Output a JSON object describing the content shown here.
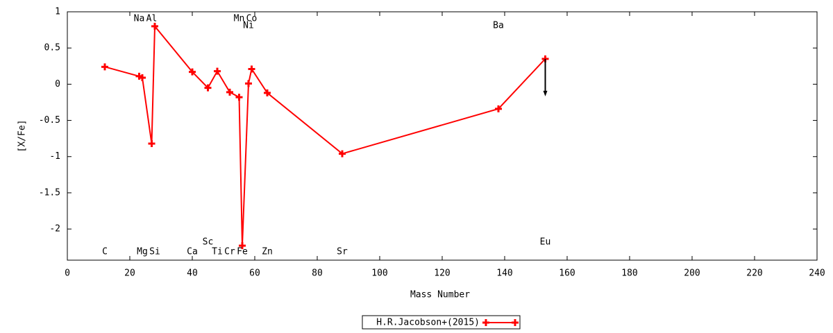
{
  "chart_data": {
    "type": "line",
    "x_label": "Mass Number",
    "y_label": "[X/Fe]",
    "xlim": [
      0,
      240
    ],
    "xticks": [
      0,
      20,
      40,
      60,
      80,
      100,
      120,
      140,
      160,
      180,
      200,
      220,
      240
    ],
    "ylim": [
      -2.43,
      1
    ],
    "yticks": [
      1,
      0.5,
      0,
      -0.5,
      -1,
      -1.5,
      -2
    ],
    "grid": false,
    "legend": "bottom",
    "elements": [
      "C",
      "Na",
      "Mg",
      "Al",
      "Si",
      "Ca",
      "Sc",
      "Ti",
      "Cr",
      "Mn",
      "Fe",
      "Ni",
      "Co",
      "Zn",
      "Sr",
      "Ba",
      "Eu"
    ],
    "upper_limits": [
      false,
      false,
      false,
      false,
      false,
      false,
      false,
      false,
      false,
      false,
      false,
      false,
      false,
      false,
      false,
      false,
      true
    ],
    "series": [
      {
        "name": "H.R.Jacobson+(2015)",
        "color": "#ff0000",
        "x": [
          12,
          23,
          24,
          27,
          28,
          40,
          45,
          48,
          52,
          55,
          56,
          58,
          59,
          64,
          88,
          138,
          153
        ],
        "values": [
          0.24,
          0.11,
          0.09,
          -0.82,
          0.8,
          0.17,
          -0.05,
          0.18,
          -0.11,
          -0.18,
          -2.23,
          0.01,
          0.21,
          -0.12,
          -0.96,
          -0.34,
          0.35
        ]
      }
    ]
  }
}
